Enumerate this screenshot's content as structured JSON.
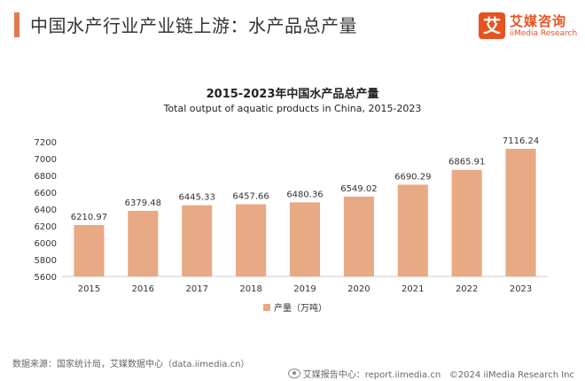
{
  "header": {
    "title": "中国水产行业产业链上游：水产品总产量"
  },
  "logo": {
    "mark": "艾",
    "name_cn": "艾媒咨询",
    "name_en": "iiMedia Research"
  },
  "footer": {
    "source": "数据来源：国家统计局，艾媒数据中心（data.iimedia.cn）",
    "report": "艾媒报告中心：report.iimedia.cn",
    "copyright": "©2024  iiMedia Research  Inc"
  },
  "colors": {
    "accent": "#e07b4f",
    "bar": "#e8a985",
    "brand": "#e8521f"
  },
  "chart_data": {
    "type": "bar",
    "title": "2015-2023年中国水产品总产量",
    "subtitle": "Total output of aquatic products in China, 2015-2023",
    "categories": [
      "2015",
      "2016",
      "2017",
      "2018",
      "2019",
      "2020",
      "2021",
      "2022",
      "2023"
    ],
    "series": [
      {
        "name": "产量（万吨）",
        "values": [
          6210.97,
          6379.48,
          6445.33,
          6457.66,
          6480.36,
          6549.02,
          6690.29,
          6865.91,
          7116.24
        ],
        "labels": [
          "6210.97",
          "6379.48",
          "6445.33",
          "6457.66",
          "6480.36",
          "6549.02",
          "6690.29",
          "6865.91",
          "7116.24"
        ]
      }
    ],
    "ylim": [
      5600,
      7200
    ],
    "yticks": [
      "5600",
      "5800",
      "6000",
      "6200",
      "6400",
      "6600",
      "6800",
      "7000",
      "7200"
    ],
    "grid": false,
    "legend": "bottom-center"
  }
}
